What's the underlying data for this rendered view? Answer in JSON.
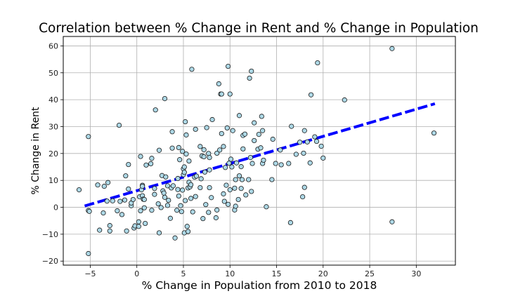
{
  "chart_data": {
    "type": "scatter",
    "title": "Correlation between % Change in Rent and % Change in Population",
    "xlabel": "% Change in Population from 2010 to 2018",
    "ylabel": "% Change in Rent",
    "xlim": [
      -7.9,
      34.2
    ],
    "ylim": [
      -21.5,
      63.5
    ],
    "xticks": [
      -5,
      0,
      5,
      10,
      15,
      20,
      25,
      30
    ],
    "yticks": [
      -20,
      -10,
      0,
      10,
      20,
      30,
      40,
      50,
      60
    ],
    "grid": true,
    "colors": {
      "point_fill": "#add8e6",
      "point_edge": "#1a1a1a",
      "regression_line": "#0000ff",
      "grid": "#b0b0b0"
    },
    "regression_line": {
      "style": "dashed",
      "x": [
        -5.6,
        32.0
      ],
      "y": [
        0.5,
        38.5
      ]
    },
    "points": [
      [
        -5.2,
        26.3
      ],
      [
        -5.2,
        -1.2
      ],
      [
        -5.1,
        -1.5
      ],
      [
        -5.2,
        -17.2
      ],
      [
        -6.2,
        6.5
      ],
      [
        -4.2,
        8.3
      ],
      [
        -4.0,
        -8.5
      ],
      [
        -3.6,
        -2.1
      ],
      [
        -3.5,
        7.8
      ],
      [
        -3.2,
        2.3
      ],
      [
        -3.1,
        9.2
      ],
      [
        -2.9,
        -6.8
      ],
      [
        -2.9,
        -8.8
      ],
      [
        -2.6,
        2.4
      ],
      [
        -2.1,
        -1.3
      ],
      [
        -1.9,
        30.5
      ],
      [
        -1.8,
        2.2
      ],
      [
        -1.6,
        -2.7
      ],
      [
        -1.3,
        2.7
      ],
      [
        -1.2,
        11.7
      ],
      [
        -1.1,
        -8.8
      ],
      [
        -0.9,
        15.9
      ],
      [
        -0.9,
        6.8
      ],
      [
        -0.6,
        0.6
      ],
      [
        -0.6,
        1.6
      ],
      [
        -0.4,
        2.9
      ],
      [
        -0.3,
        -7.7
      ],
      [
        -0.2,
        -6.9
      ],
      [
        0.2,
        -7.1
      ],
      [
        0.2,
        -5.4
      ],
      [
        0.3,
        3.9
      ],
      [
        0.4,
        18.9
      ],
      [
        0.4,
        -1.3
      ],
      [
        0.5,
        6.5
      ],
      [
        0.6,
        4.3
      ],
      [
        0.6,
        8.2
      ],
      [
        0.6,
        7.8
      ],
      [
        0.7,
        3.0
      ],
      [
        0.8,
        -0.2
      ],
      [
        0.8,
        2.9
      ],
      [
        0.9,
        -6.0
      ],
      [
        1.0,
        15.7
      ],
      [
        1.5,
        16.2
      ],
      [
        1.6,
        18.2
      ],
      [
        1.6,
        -1.1
      ],
      [
        1.9,
        4.8
      ],
      [
        1.9,
        7.0
      ],
      [
        2.0,
        36.2
      ],
      [
        2.3,
        1.3
      ],
      [
        2.4,
        21.2
      ],
      [
        2.4,
        -9.5
      ],
      [
        2.6,
        -0.1
      ],
      [
        2.7,
        11.8
      ],
      [
        2.8,
        6.1
      ],
      [
        2.9,
        5.3
      ],
      [
        3.0,
        3.7
      ],
      [
        3.0,
        40.4
      ],
      [
        3.1,
        11.3
      ],
      [
        3.3,
        8.0
      ],
      [
        3.3,
        0.7
      ],
      [
        3.4,
        2.6
      ],
      [
        3.6,
        -4.1
      ],
      [
        3.7,
        7.2
      ],
      [
        3.8,
        22.0
      ],
      [
        3.8,
        28.1
      ],
      [
        3.9,
        8.0
      ],
      [
        4.1,
        -11.4
      ],
      [
        4.3,
        -1.1
      ],
      [
        4.4,
        10.7
      ],
      [
        4.4,
        6.6
      ],
      [
        4.5,
        22.2
      ],
      [
        4.5,
        4.2
      ],
      [
        4.6,
        17.7
      ],
      [
        4.7,
        0.6
      ],
      [
        4.8,
        -1.6
      ],
      [
        4.9,
        20.8
      ],
      [
        4.9,
        6.4
      ],
      [
        5.0,
        14.3
      ],
      [
        5.0,
        12.1
      ],
      [
        5.1,
        15.0
      ],
      [
        5.1,
        13.0
      ],
      [
        5.1,
        -9.5
      ],
      [
        5.2,
        31.8
      ],
      [
        5.2,
        2.5
      ],
      [
        5.3,
        19.8
      ],
      [
        5.3,
        26.9
      ],
      [
        5.4,
        -7.1
      ],
      [
        5.5,
        7.2
      ],
      [
        5.5,
        -9.0
      ],
      [
        5.6,
        17.2
      ],
      [
        5.6,
        9.3
      ],
      [
        5.7,
        7.6
      ],
      [
        5.8,
        3.3
      ],
      [
        5.8,
        8.4
      ],
      [
        5.9,
        51.3
      ],
      [
        6.0,
        -1.7
      ],
      [
        6.2,
        11.2
      ],
      [
        6.3,
        4.0
      ],
      [
        6.3,
        29.0
      ],
      [
        6.4,
        11.6
      ],
      [
        6.8,
        22.6
      ],
      [
        6.8,
        7.3
      ],
      [
        6.9,
        10.6
      ],
      [
        7.0,
        19.1
      ],
      [
        7.1,
        -4.2
      ],
      [
        7.2,
        21.4
      ],
      [
        7.2,
        18.8
      ],
      [
        7.3,
        13.1
      ],
      [
        7.4,
        1.0
      ],
      [
        7.5,
        29.6
      ],
      [
        7.7,
        20.0
      ],
      [
        7.7,
        -1.9
      ],
      [
        7.8,
        18.5
      ],
      [
        7.8,
        13.9
      ],
      [
        7.8,
        7.3
      ],
      [
        8.0,
        3.6
      ],
      [
        8.1,
        32.6
      ],
      [
        8.5,
        -3.9
      ],
      [
        8.6,
        20.1
      ],
      [
        8.6,
        -1.0
      ],
      [
        8.8,
        45.9
      ],
      [
        8.9,
        21.3
      ],
      [
        9.0,
        42.1
      ],
      [
        9.1,
        42.1
      ],
      [
        9.1,
        27.4
      ],
      [
        9.3,
        22.6
      ],
      [
        9.3,
        5.0
      ],
      [
        9.4,
        2.2
      ],
      [
        9.5,
        14.8
      ],
      [
        9.6,
        8.2
      ],
      [
        9.7,
        29.5
      ],
      [
        9.8,
        1.1
      ],
      [
        9.8,
        52.4
      ],
      [
        9.9,
        16.4
      ],
      [
        10.0,
        42.1
      ],
      [
        10.0,
        6.5
      ],
      [
        10.1,
        17.9
      ],
      [
        10.2,
        15.0
      ],
      [
        10.3,
        28.5
      ],
      [
        10.5,
        7.1
      ],
      [
        10.5,
        -1.0
      ],
      [
        10.6,
        0.4
      ],
      [
        10.6,
        10.3
      ],
      [
        10.7,
        16.5
      ],
      [
        10.9,
        2.9
      ],
      [
        11.0,
        34.1
      ],
      [
        11.0,
        11.7
      ],
      [
        11.2,
        7.0
      ],
      [
        11.2,
        15.1
      ],
      [
        11.3,
        10.3
      ],
      [
        11.4,
        21.7
      ],
      [
        11.4,
        26.7
      ],
      [
        11.6,
        27.2
      ],
      [
        11.7,
        4.6
      ],
      [
        12.0,
        10.3
      ],
      [
        12.1,
        48.0
      ],
      [
        12.2,
        18.5
      ],
      [
        12.3,
        50.6
      ],
      [
        12.3,
        5.9
      ],
      [
        12.4,
        16.3
      ],
      [
        12.6,
        24.8
      ],
      [
        12.6,
        31.4
      ],
      [
        13.0,
        21.6
      ],
      [
        13.1,
        27.1
      ],
      [
        13.3,
        22.1
      ],
      [
        13.4,
        33.8
      ],
      [
        13.5,
        28.5
      ],
      [
        13.5,
        16.3
      ],
      [
        13.6,
        17.5
      ],
      [
        13.9,
        0.2
      ],
      [
        14.5,
        10.3
      ],
      [
        14.6,
        25.3
      ],
      [
        14.9,
        16.3
      ],
      [
        15.4,
        21.3
      ],
      [
        15.5,
        15.8
      ],
      [
        16.3,
        16.3
      ],
      [
        16.5,
        -5.7
      ],
      [
        16.6,
        30.1
      ],
      [
        17.1,
        19.7
      ],
      [
        17.5,
        24.2
      ],
      [
        17.8,
        3.9
      ],
      [
        17.9,
        20.1
      ],
      [
        18.0,
        7.4
      ],
      [
        18.0,
        28.5
      ],
      [
        18.3,
        24.3
      ],
      [
        18.6,
        16.5
      ],
      [
        18.7,
        41.8
      ],
      [
        19.1,
        26.2
      ],
      [
        19.3,
        24.5
      ],
      [
        19.4,
        53.7
      ],
      [
        19.8,
        22.7
      ],
      [
        20.0,
        18.3
      ],
      [
        22.3,
        39.9
      ],
      [
        27.4,
        59.0
      ],
      [
        27.4,
        -5.4
      ],
      [
        31.9,
        27.6
      ]
    ]
  }
}
